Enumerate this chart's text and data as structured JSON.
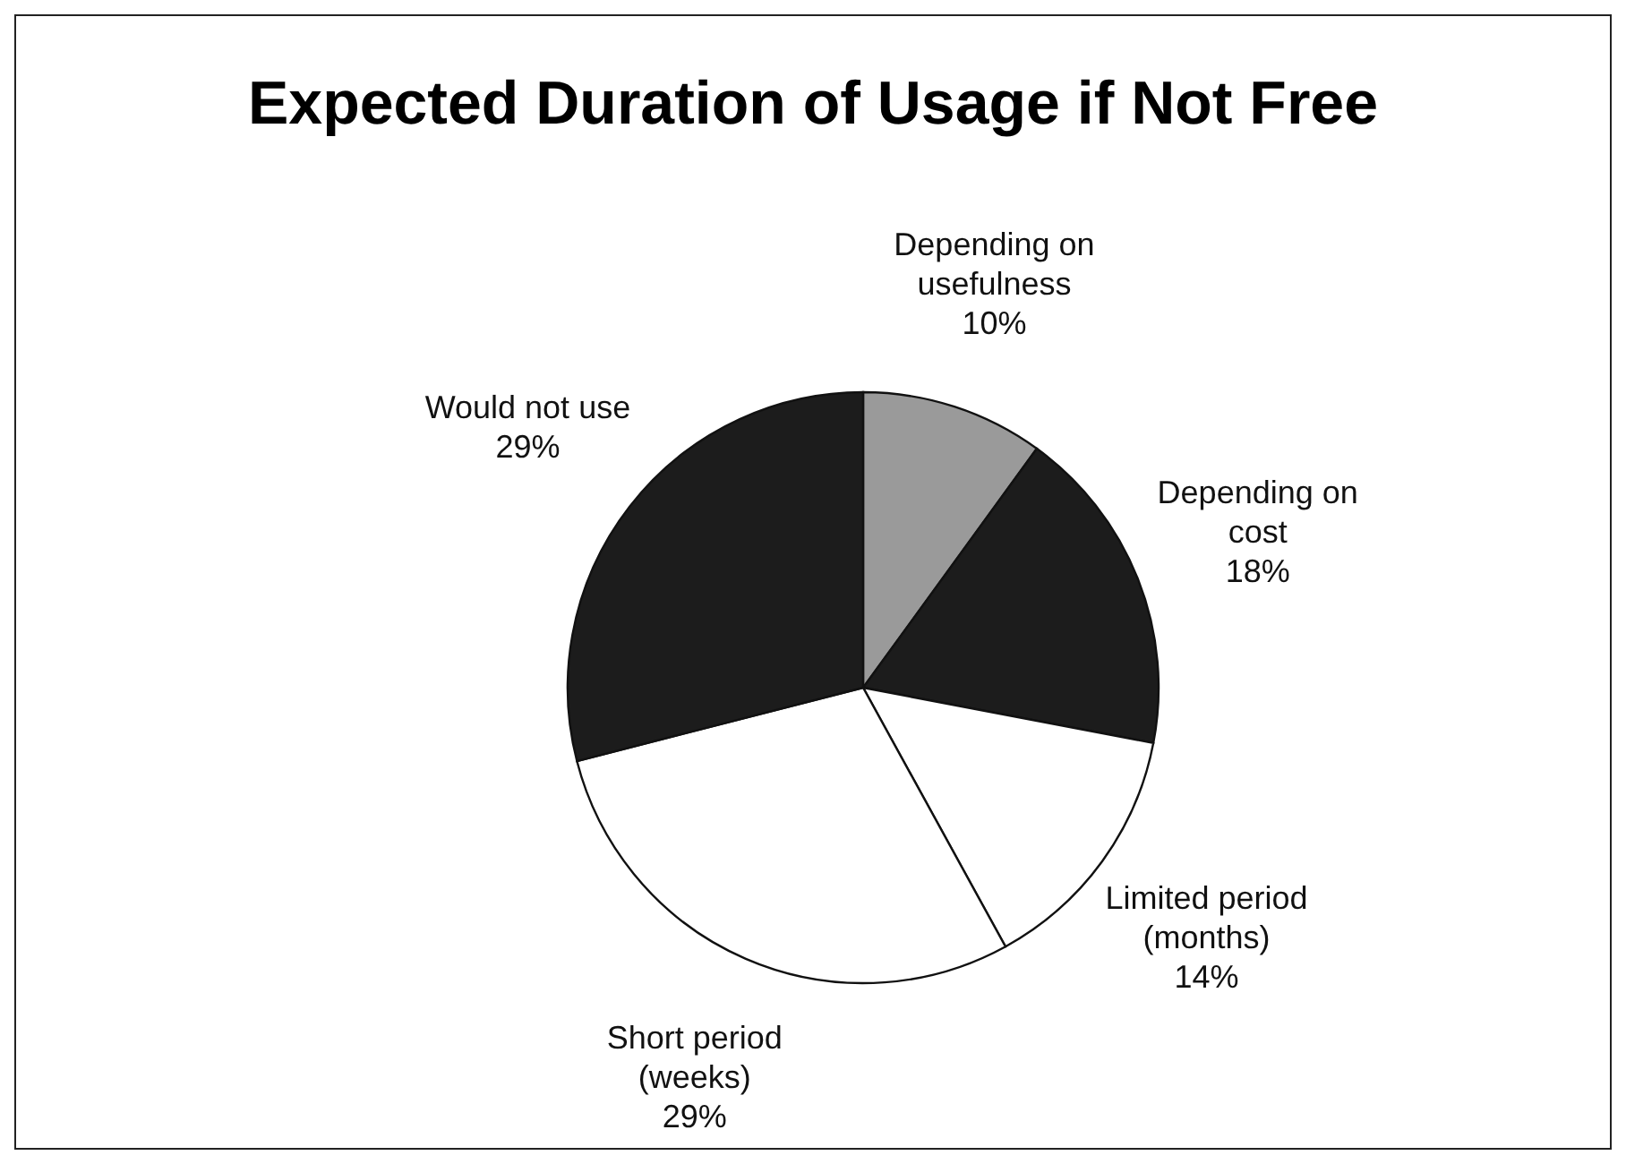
{
  "chart_data": {
    "type": "pie",
    "title": "Expected Duration of Usage if Not Free",
    "categories": [
      "Depending on usefulness",
      "Depending on cost",
      "Limited period (months)",
      "Short period (weeks)",
      "Would not use"
    ],
    "values": [
      10,
      18,
      14,
      29,
      29
    ],
    "colors": [
      "#9a9a9a",
      "#1c1c1c",
      "#ffffff",
      "#ffffff",
      "#1c1c1c"
    ],
    "value_labels": [
      "10%",
      "18%",
      "14%",
      "29%",
      "29%"
    ]
  }
}
